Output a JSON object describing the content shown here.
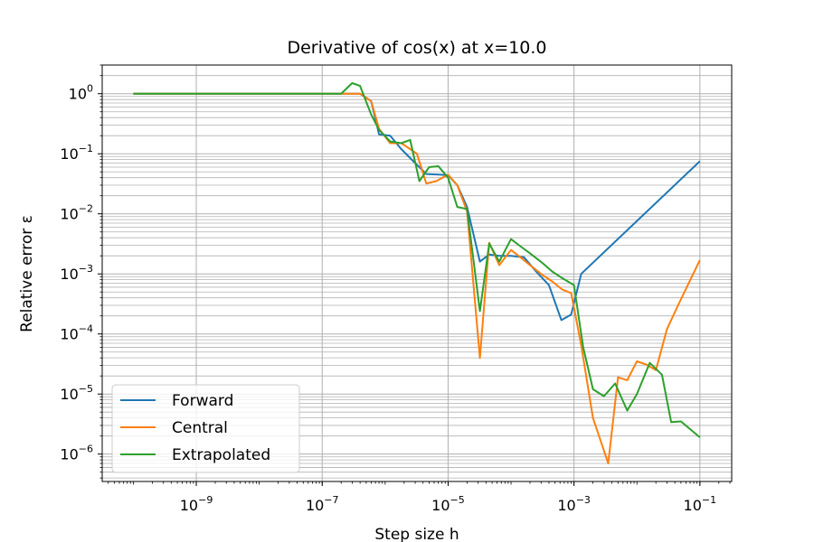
{
  "chart_data": {
    "type": "line",
    "title": "Derivative of cos(x) at x=10.0",
    "xlabel": "Step size h",
    "ylabel": "Relative error ε",
    "xscale": "log",
    "yscale": "log",
    "xlim": [
      3.2e-11,
      0.32
    ],
    "ylim": [
      3.5e-07,
      3.0
    ],
    "grid": "both axes, major and minor on y",
    "legend_position": "lower-left",
    "xticks": [
      {
        "base": "10",
        "exp": "−9",
        "value": 1e-09
      },
      {
        "base": "10",
        "exp": "−7",
        "value": 1e-07
      },
      {
        "base": "10",
        "exp": "−5",
        "value": 1e-05
      },
      {
        "base": "10",
        "exp": "−3",
        "value": 0.001
      },
      {
        "base": "10",
        "exp": "−1",
        "value": 0.1
      }
    ],
    "yticks": [
      {
        "base": "10",
        "exp": "0",
        "value": 1
      },
      {
        "base": "10",
        "exp": "−1",
        "value": 0.1
      },
      {
        "base": "10",
        "exp": "−2",
        "value": 0.01
      },
      {
        "base": "10",
        "exp": "−3",
        "value": 0.001
      },
      {
        "base": "10",
        "exp": "−4",
        "value": 0.0001
      },
      {
        "base": "10",
        "exp": "−5",
        "value": 1e-05
      },
      {
        "base": "10",
        "exp": "−6",
        "value": 1e-06
      }
    ],
    "series": [
      {
        "name": "Forward",
        "color": "#1f77b4",
        "x": [
          1e-10,
          2e-07,
          4e-07,
          6e-07,
          8e-07,
          1.2e-06,
          1.8e-06,
          3e-06,
          4.5e-06,
          7e-06,
          1e-05,
          1.4e-05,
          2e-05,
          3.2e-05,
          4.5e-05,
          6.5e-05,
          0.0001,
          0.00016,
          0.00025,
          0.0004,
          0.00063,
          0.0009,
          0.0013,
          0.1
        ],
        "y": [
          1,
          1,
          1,
          0.75,
          0.21,
          0.2,
          0.12,
          0.07,
          0.046,
          0.045,
          0.044,
          0.03,
          0.013,
          0.0016,
          0.0021,
          0.002,
          0.002,
          0.0019,
          0.0011,
          0.00065,
          0.00017,
          0.00021,
          0.001,
          0.075
        ]
      },
      {
        "name": "Central",
        "color": "#ff7f0e",
        "x": [
          1e-10,
          2e-07,
          4e-07,
          6e-07,
          8e-07,
          1.2e-06,
          1.8e-06,
          2.5e-06,
          3.2e-06,
          4.5e-06,
          6.5e-06,
          1e-05,
          1.4e-05,
          2e-05,
          3.2e-05,
          4.5e-05,
          6.5e-05,
          0.0001,
          0.00014,
          0.0002,
          0.00032,
          0.00045,
          0.00065,
          0.0009,
          0.0013,
          0.002,
          0.0035,
          0.005,
          0.007,
          0.01,
          0.014,
          0.02,
          0.03,
          0.045,
          0.1
        ],
        "y": [
          1,
          1,
          1,
          0.75,
          0.26,
          0.15,
          0.15,
          0.12,
          0.1,
          0.032,
          0.035,
          0.045,
          0.03,
          0.011,
          4e-05,
          0.0033,
          0.0014,
          0.0025,
          0.0019,
          0.0014,
          0.00095,
          0.00075,
          0.00055,
          0.00048,
          6.5e-05,
          4e-06,
          7e-07,
          1.9e-05,
          1.7e-05,
          3.5e-05,
          3.1e-05,
          2.5e-05,
          0.00012,
          0.0003,
          0.0017
        ]
      },
      {
        "name": "Extrapolated",
        "color": "#2ca02c",
        "x": [
          1e-10,
          2e-07,
          3e-07,
          4e-07,
          6e-07,
          8e-07,
          1.2e-06,
          1.8e-06,
          2.5e-06,
          3.5e-06,
          5e-06,
          7e-06,
          1e-05,
          1.4e-05,
          2e-05,
          3.2e-05,
          4.5e-05,
          6.5e-05,
          0.0001,
          0.00014,
          0.0002,
          0.00032,
          0.00045,
          0.00065,
          0.001,
          0.0014,
          0.002,
          0.003,
          0.0045,
          0.007,
          0.01,
          0.016,
          0.025,
          0.035,
          0.05,
          0.1
        ],
        "y": [
          1,
          1,
          1.5,
          1.35,
          0.45,
          0.25,
          0.16,
          0.15,
          0.17,
          0.035,
          0.06,
          0.062,
          0.04,
          0.013,
          0.012,
          0.00024,
          0.0032,
          0.0016,
          0.0038,
          0.0029,
          0.0022,
          0.0015,
          0.0011,
          0.00085,
          0.00065,
          6e-05,
          1.2e-05,
          9.2e-06,
          1.5e-05,
          5.3e-06,
          1e-05,
          3.3e-05,
          2.1e-05,
          3.4e-06,
          3.5e-06,
          1.9e-06
        ]
      }
    ]
  }
}
